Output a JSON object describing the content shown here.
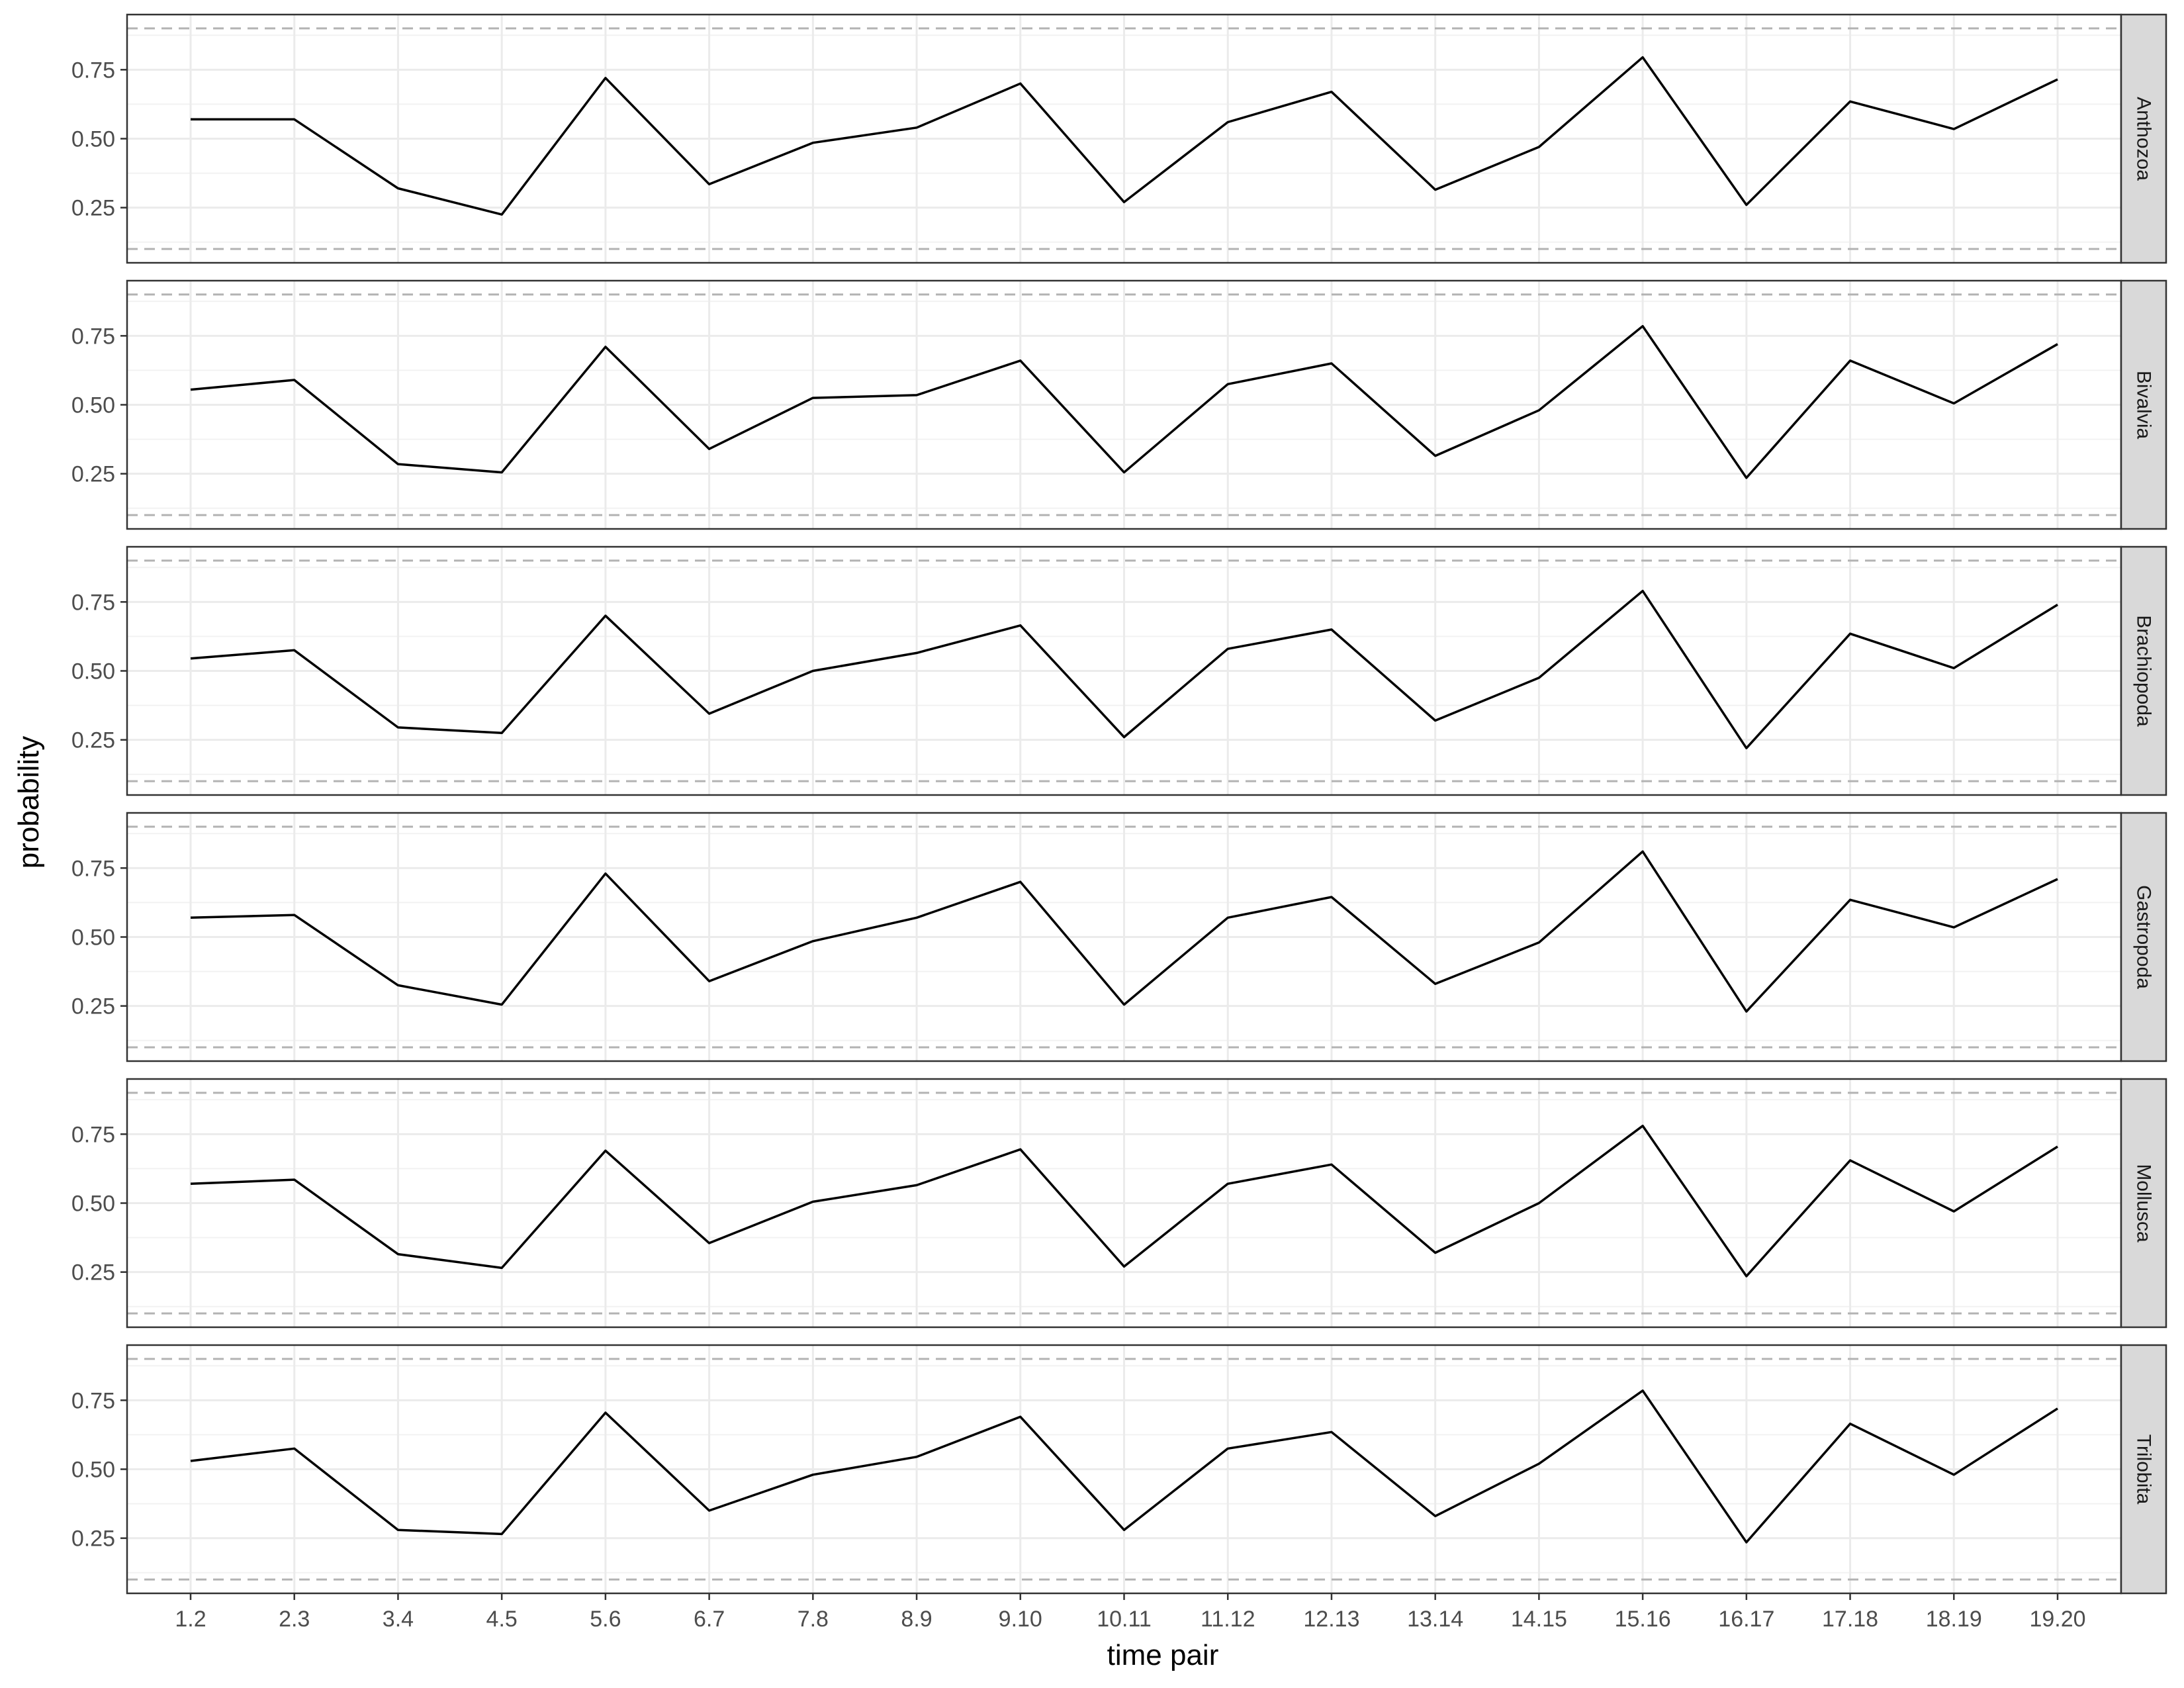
{
  "chart_data": {
    "type": "line",
    "xlabel": "time pair",
    "ylabel": "probability",
    "categories": [
      "1.2",
      "2.3",
      "3.4",
      "4.5",
      "5.6",
      "6.7",
      "7.8",
      "8.9",
      "9.10",
      "10.11",
      "11.12",
      "12.13",
      "13.14",
      "14.15",
      "15.16",
      "16.17",
      "17.18",
      "18.19",
      "19.20"
    ],
    "ylim": [
      0.05,
      0.95
    ],
    "yticks": [
      0.25,
      0.5,
      0.75
    ],
    "ytick_labels": [
      "0.25",
      "0.50",
      "0.75"
    ],
    "reference_lines": [
      0.1,
      0.9
    ],
    "grid": true,
    "panels": [
      {
        "name": "Anthozoa",
        "values": [
          0.57,
          0.57,
          0.32,
          0.225,
          0.72,
          0.335,
          0.485,
          0.54,
          0.7,
          0.27,
          0.56,
          0.67,
          0.315,
          0.47,
          0.795,
          0.26,
          0.635,
          0.535,
          0.715
        ]
      },
      {
        "name": "Bivalvia",
        "values": [
          0.555,
          0.59,
          0.285,
          0.255,
          0.71,
          0.34,
          0.525,
          0.535,
          0.66,
          0.255,
          0.575,
          0.65,
          0.315,
          0.48,
          0.785,
          0.235,
          0.66,
          0.505,
          0.72
        ]
      },
      {
        "name": "Brachiopoda",
        "values": [
          0.545,
          0.575,
          0.295,
          0.275,
          0.7,
          0.345,
          0.5,
          0.565,
          0.665,
          0.26,
          0.58,
          0.65,
          0.32,
          0.475,
          0.79,
          0.22,
          0.635,
          0.51,
          0.74
        ]
      },
      {
        "name": "Gastropoda",
        "values": [
          0.57,
          0.58,
          0.325,
          0.255,
          0.73,
          0.34,
          0.485,
          0.57,
          0.7,
          0.255,
          0.57,
          0.645,
          0.33,
          0.48,
          0.81,
          0.23,
          0.635,
          0.535,
          0.71
        ]
      },
      {
        "name": "Mollusca",
        "values": [
          0.57,
          0.585,
          0.315,
          0.265,
          0.69,
          0.355,
          0.505,
          0.565,
          0.695,
          0.27,
          0.57,
          0.64,
          0.32,
          0.5,
          0.78,
          0.235,
          0.655,
          0.47,
          0.705
        ]
      },
      {
        "name": "Trilobita",
        "values": [
          0.53,
          0.575,
          0.28,
          0.265,
          0.705,
          0.35,
          0.48,
          0.545,
          0.69,
          0.28,
          0.575,
          0.635,
          0.33,
          0.52,
          0.785,
          0.235,
          0.665,
          0.48,
          0.72
        ]
      }
    ]
  }
}
